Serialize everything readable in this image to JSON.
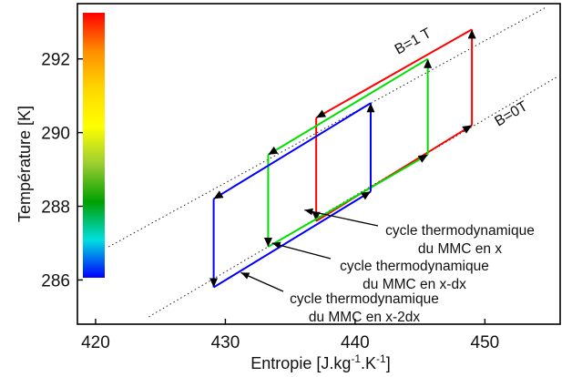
{
  "chart_data": {
    "type": "line",
    "xlabel": "Entropie [J.kg",
    "xlabel_sup1": "-1",
    "xlabel_mid": ".K",
    "xlabel_sup2": "-1",
    "xlabel_end": "]",
    "ylabel": "Température [K]",
    "xlim": [
      418.6,
      455.8
    ],
    "ylim": [
      284.8,
      293.5
    ],
    "xticks": [
      420,
      430,
      440,
      450
    ],
    "yticks": [
      286,
      288,
      290,
      292
    ],
    "grid": false,
    "colorbar": {
      "placement": "top-left",
      "colors": [
        "#ff0000",
        "#ff8c00",
        "#ffd700",
        "#ffff00",
        "#9acd32",
        "#00a000",
        "#00e0e0",
        "#0000ff"
      ]
    },
    "field_lines": [
      {
        "label": "B=1 T",
        "style": "dotted",
        "points": [
          [
            421.0,
            286.9
          ],
          [
            454.7,
            293.4
          ]
        ]
      },
      {
        "label": "B=0T",
        "style": "dotted",
        "points": [
          [
            424.1,
            285.0
          ],
          [
            455.5,
            291.5
          ]
        ]
      }
    ],
    "series": [
      {
        "color": "#ff0000",
        "points": [
          [
            437.0,
            287.6
          ],
          [
            449.0,
            290.2
          ],
          [
            449.0,
            292.8
          ],
          [
            437.0,
            290.4
          ],
          [
            437.0,
            287.6
          ]
        ]
      },
      {
        "color": "#00e000",
        "points": [
          [
            433.3,
            286.9
          ],
          [
            445.6,
            289.4
          ],
          [
            445.6,
            292.0
          ],
          [
            433.3,
            289.4
          ],
          [
            433.3,
            286.9
          ]
        ]
      },
      {
        "color": "#0000ff",
        "points": [
          [
            429.1,
            285.8
          ],
          [
            441.2,
            288.4
          ],
          [
            441.2,
            290.8
          ],
          [
            429.1,
            288.2
          ],
          [
            429.1,
            285.8
          ]
        ]
      }
    ],
    "annotations": [
      {
        "lines": [
          "cycle thermodynamique",
          "du MMC en x"
        ],
        "arrow_to": [
          436.1,
          287.9
        ]
      },
      {
        "lines": [
          "cycle thermodynamique",
          "du MMC en x-dx"
        ],
        "arrow_to": [
          433.6,
          287.0
        ]
      },
      {
        "lines": [
          "cycle thermodynamique",
          "du MMC en x-2dx"
        ],
        "arrow_to": [
          431.2,
          286.2
        ]
      }
    ]
  }
}
